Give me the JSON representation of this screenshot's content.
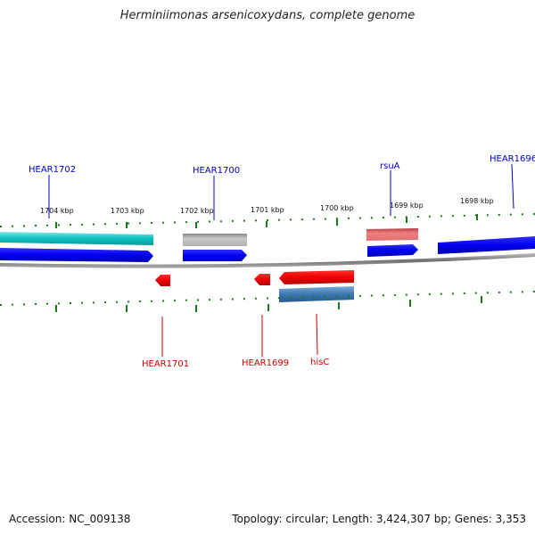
{
  "title": "Herminiimonas arsenicoxydans, complete genome",
  "footer": {
    "accession": "Accession: NC_009138",
    "summary": "Topology: circular; Length: 3,424,307 bp; Genes: 3,353"
  },
  "colors": {
    "forward_label": "#0000cc",
    "reverse_label": "#cc0000",
    "tick": "#1a7a1a",
    "backbone": "#808080"
  },
  "position_ticks": [
    {
      "label": "1704 kbp"
    },
    {
      "label": "1703 kbp"
    },
    {
      "label": "1702 kbp"
    },
    {
      "label": "1701 kbp"
    },
    {
      "label": "1700 kbp"
    },
    {
      "label": "1699 kbp"
    },
    {
      "label": "1698 kbp"
    }
  ],
  "gene_labels": [
    {
      "text": "HEAR1702",
      "strand": "forward"
    },
    {
      "text": "HEAR1700",
      "strand": "forward"
    },
    {
      "text": "rsuA",
      "strand": "forward"
    },
    {
      "text": "HEAR1696",
      "strand": "forward"
    },
    {
      "text": "HEAR1701",
      "strand": "reverse"
    },
    {
      "text": "HEAR1699",
      "strand": "reverse"
    },
    {
      "text": "hisC",
      "strand": "reverse"
    }
  ]
}
